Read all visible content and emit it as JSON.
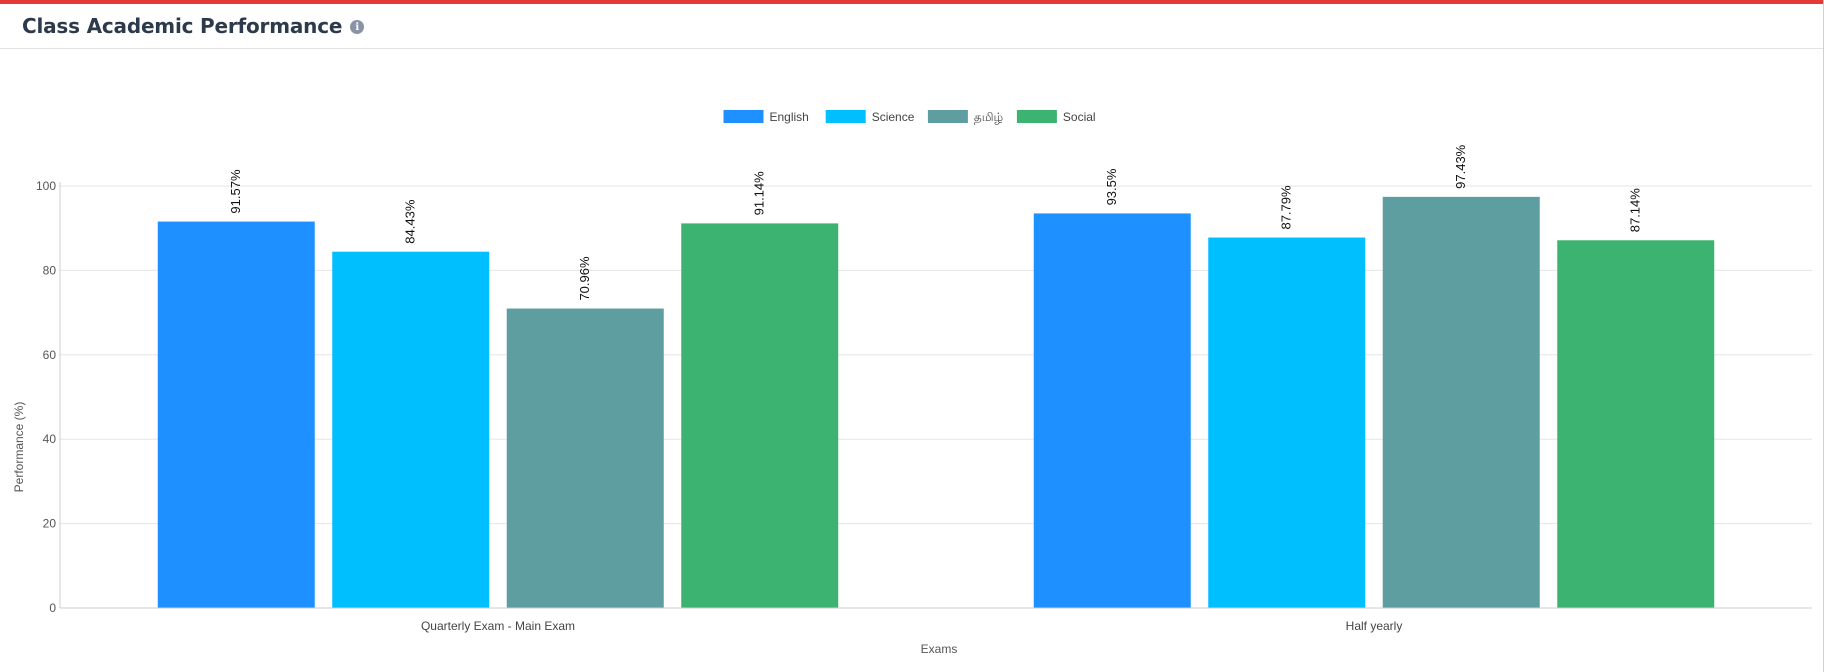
{
  "header": {
    "title": "Class Academic Performance",
    "info_icon": "info-circle-icon"
  },
  "chart_data": {
    "type": "bar",
    "categories": [
      "Quarterly Exam - Main Exam",
      "Half yearly"
    ],
    "series": [
      {
        "name": "English",
        "values": [
          91.57,
          93.5
        ],
        "labels": [
          "91.57%",
          "93.5%"
        ],
        "color": "#1E90FF"
      },
      {
        "name": "Science",
        "values": [
          84.43,
          87.79
        ],
        "labels": [
          "84.43%",
          "87.79%"
        ],
        "color": "#00BFFF"
      },
      {
        "name": "தமிழ்",
        "values": [
          70.96,
          97.43
        ],
        "labels": [
          "70.96%",
          "97.43%"
        ],
        "color": "#5F9EA0"
      },
      {
        "name": "Social",
        "values": [
          91.14,
          87.14
        ],
        "labels": [
          "91.14%",
          "87.14%"
        ],
        "color": "#3CB371"
      }
    ],
    "xlabel": "Exams",
    "ylabel": "Performance (%)",
    "ylim": [
      0,
      100
    ],
    "yticks": [
      0,
      20,
      40,
      60,
      80,
      100
    ],
    "grid": true,
    "legend": "top-center"
  }
}
